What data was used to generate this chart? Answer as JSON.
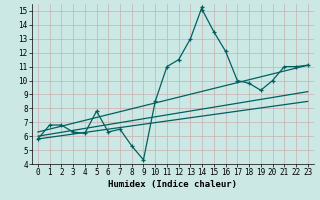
{
  "xlabel": "Humidex (Indice chaleur)",
  "background_color": "#cce8e4",
  "grid_color": "#c8b0b0",
  "line_color": "#006060",
  "xlim": [
    -0.5,
    23.5
  ],
  "ylim": [
    4,
    15.5
  ],
  "xticks": [
    0,
    1,
    2,
    3,
    4,
    5,
    6,
    7,
    8,
    9,
    10,
    11,
    12,
    13,
    14,
    15,
    16,
    17,
    18,
    19,
    20,
    21,
    22,
    23
  ],
  "yticks": [
    4,
    5,
    6,
    7,
    8,
    9,
    10,
    11,
    12,
    13,
    14,
    15
  ],
  "main_line_x": [
    0,
    1,
    2,
    3,
    4,
    5,
    6,
    7,
    8,
    9,
    10,
    11,
    12,
    13,
    14,
    14,
    15,
    16,
    17,
    18,
    19,
    20,
    21,
    22,
    23
  ],
  "main_line_y": [
    5.8,
    6.8,
    6.8,
    6.3,
    6.2,
    7.8,
    6.3,
    6.5,
    5.3,
    4.3,
    8.5,
    11.0,
    11.5,
    13.0,
    15.3,
    15.1,
    13.5,
    12.1,
    10.0,
    9.8,
    9.3,
    10.0,
    11.0,
    11.0,
    11.1
  ],
  "trend1_x": [
    0,
    23
  ],
  "trend1_y": [
    5.8,
    8.5
  ],
  "trend2_x": [
    0,
    23
  ],
  "trend2_y": [
    6.0,
    9.2
  ],
  "trend3_x": [
    0,
    23
  ],
  "trend3_y": [
    6.3,
    11.1
  ]
}
